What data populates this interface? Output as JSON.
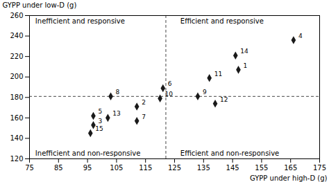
{
  "chart_data": {
    "type": "scatter",
    "xlabel": "GYPP under high-D (g)",
    "ylabel": "GYPP under low-D (g)",
    "labels": [
      "1",
      "2",
      "3",
      "4",
      "5",
      "6",
      "7",
      "8",
      "9",
      "10",
      "11",
      "12",
      "13",
      "14",
      "15"
    ],
    "x": [
      147,
      112,
      97,
      166,
      97,
      121,
      112,
      103,
      133,
      120,
      137,
      139,
      102,
      146,
      96
    ],
    "values": [
      207,
      171,
      153,
      236,
      162,
      189,
      157,
      181,
      181,
      179,
      199,
      174,
      160,
      221,
      145
    ],
    "color": "#1a1a1a",
    "marker": "diamond",
    "xlim": [
      75,
      175
    ],
    "ylim": [
      120,
      260
    ],
    "xticks": [
      75,
      85,
      95,
      105,
      115,
      125,
      135,
      145,
      155,
      165,
      175
    ],
    "yticks": [
      120,
      140,
      160,
      180,
      200,
      220,
      240,
      260
    ],
    "reference_lines": [
      {
        "axis": "x",
        "value": 122,
        "color": "#444444",
        "line_style": "dashed"
      },
      {
        "axis": "y",
        "value": 181,
        "color": "#444444",
        "line_style": "dashed"
      }
    ],
    "annotations": [
      {
        "text": "Inefficient and responsive",
        "x": 77,
        "y": 257
      },
      {
        "text": "Efficient and responsive",
        "x": 127,
        "y": 257
      },
      {
        "text": "Inefficient and non-responsive",
        "x": 77,
        "y": 123
      },
      {
        "text": "Efficient and non-responsive",
        "x": 127,
        "y": 123
      }
    ]
  }
}
